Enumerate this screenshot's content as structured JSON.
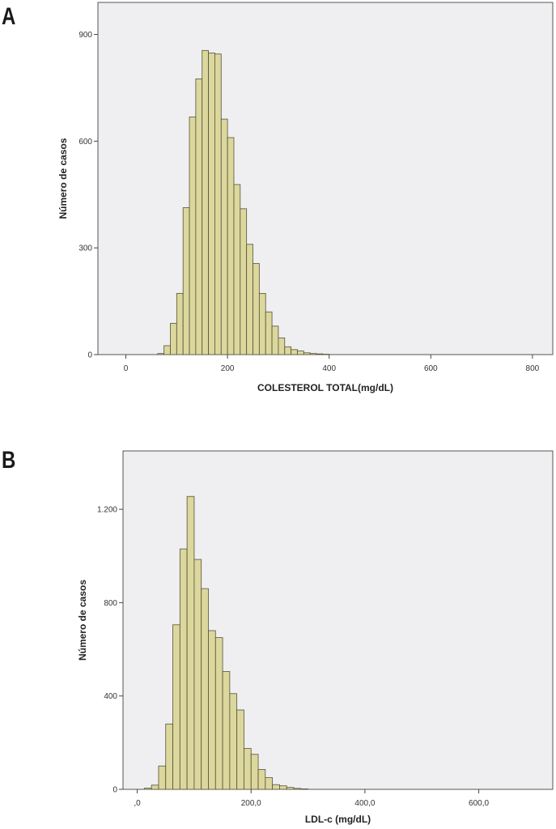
{
  "panels": {
    "a": {
      "letter": "A"
    },
    "b": {
      "letter": "B"
    }
  },
  "colors": {
    "bar_fill": "#dcd79c",
    "bar_stroke": "#55513a",
    "plot_bg": "#efeff1",
    "frame": "#555555"
  },
  "chart_data": [
    {
      "type": "bar",
      "title": "",
      "xlabel": "COLESTEROL TOTAL(mg/dL)",
      "ylabel": "Número de casos",
      "xlim": [
        -55,
        840
      ],
      "ylim": [
        0,
        990
      ],
      "x_ticks": [
        0,
        200,
        400,
        600,
        800
      ],
      "x_tick_labels": [
        "0",
        "200",
        "400",
        "600",
        "800"
      ],
      "y_ticks": [
        0,
        300,
        600,
        900
      ],
      "y_tick_labels": [
        "0",
        "300",
        "600",
        "900"
      ],
      "bin_width": 12.5,
      "bin_starts": [
        62.5,
        75,
        87.5,
        100,
        112.5,
        125,
        137.5,
        150,
        162.5,
        175,
        187.5,
        200,
        212.5,
        225,
        237.5,
        250,
        262.5,
        275,
        287.5,
        300,
        312.5,
        325,
        337.5,
        350,
        362.5,
        375,
        387.5
      ],
      "values": [
        3,
        25,
        88,
        172,
        413,
        668,
        775,
        855,
        848,
        845,
        662,
        610,
        478,
        410,
        310,
        256,
        172,
        120,
        80,
        47,
        22,
        14,
        10,
        5,
        3,
        2,
        1
      ]
    },
    {
      "type": "bar",
      "title": "",
      "xlabel": "LDL-c (mg/dL)",
      "ylabel": "Número de casos",
      "xlim": [
        -25,
        730
      ],
      "ylim": [
        0,
        1450
      ],
      "x_ticks": [
        0,
        200,
        400,
        600
      ],
      "x_tick_labels": [
        ",0",
        "200,0",
        "400,0",
        "600,0"
      ],
      "y_ticks": [
        0,
        400,
        800,
        1200
      ],
      "y_tick_labels": [
        "0",
        "400",
        "800",
        "1.200"
      ],
      "bin_width": 12.5,
      "bin_starts": [
        12.5,
        25,
        37.5,
        50,
        62.5,
        75,
        87.5,
        100,
        112.5,
        125,
        137.5,
        150,
        162.5,
        175,
        187.5,
        200,
        212.5,
        225,
        237.5,
        250,
        262.5,
        275,
        287.5
      ],
      "values": [
        5,
        18,
        100,
        280,
        705,
        1030,
        1255,
        985,
        860,
        680,
        650,
        505,
        410,
        340,
        175,
        150,
        85,
        50,
        20,
        15,
        8,
        4,
        2
      ]
    }
  ]
}
